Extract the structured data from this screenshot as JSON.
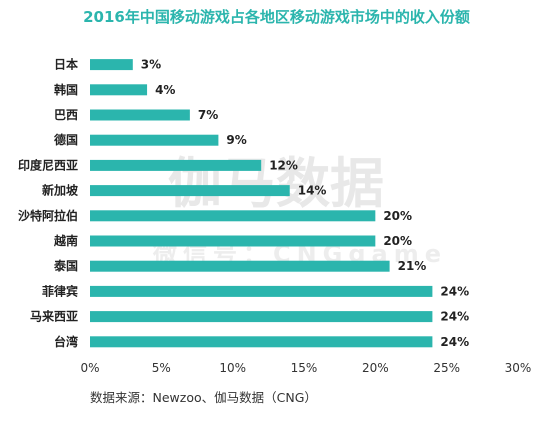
{
  "chart_data": {
    "type": "bar",
    "orientation": "horizontal",
    "title": "2016年中国移动游戏占各地区移动游戏市场中的收入份额",
    "categories": [
      "日本",
      "韩国",
      "巴西",
      "德国",
      "印度尼西亚",
      "新加坡",
      "沙特阿拉伯",
      "越南",
      "泰国",
      "菲律宾",
      "马来西亚",
      "台湾"
    ],
    "values": [
      3,
      4,
      7,
      9,
      12,
      14,
      20,
      20,
      21,
      24,
      24,
      24
    ],
    "value_labels": [
      "3%",
      "4%",
      "7%",
      "9%",
      "12%",
      "14%",
      "20%",
      "20%",
      "21%",
      "24%",
      "24%",
      "24%"
    ],
    "xlim": [
      0,
      30
    ],
    "x_ticks": [
      0,
      5,
      10,
      15,
      20,
      25,
      30
    ],
    "x_tick_labels": [
      "0%",
      "5%",
      "10%",
      "15%",
      "20%",
      "25%",
      "30%"
    ],
    "bar_color": "#2bb5ad",
    "grid": false,
    "legend": "none",
    "source": "数据来源：Newzoo、伽马数据（CNG）",
    "watermark": "伽马数据",
    "watermark_sub": "微信号：CNGgame"
  }
}
